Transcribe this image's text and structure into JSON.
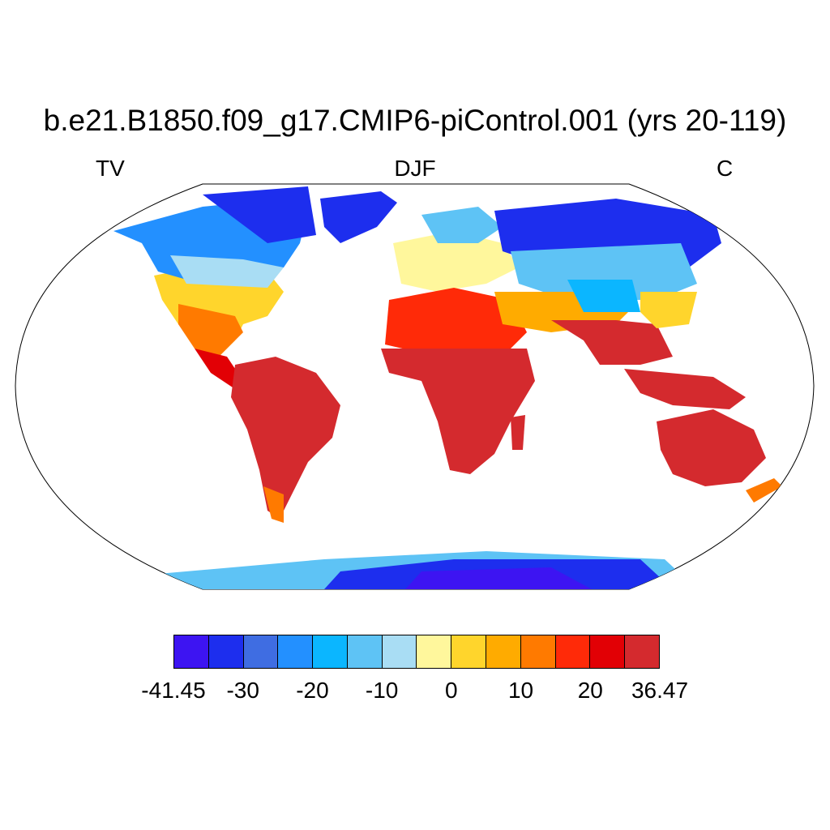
{
  "title": "b.e21.B1850.f09_g17.CMIP6-piControl.001 (yrs 20-119)",
  "subtitle_left": "TV",
  "subtitle_center": "DJF",
  "subtitle_right": "C",
  "colorbar": {
    "colors": [
      "#3d14f2",
      "#1d2eee",
      "#3f6de2",
      "#2390ff",
      "#0bb6ff",
      "#5ec3f5",
      "#a9ddf4",
      "#fff79c",
      "#ffd52c",
      "#ffab00",
      "#ff7a00",
      "#ff2a08",
      "#e20005",
      "#d42a2e"
    ],
    "labels": [
      "-41.45",
      "-30",
      "-20",
      "-10",
      "0",
      "10",
      "20",
      "36.47"
    ],
    "label_box_index": [
      0,
      2,
      4,
      6,
      8,
      10,
      12,
      14
    ]
  },
  "map": {
    "projection": "Robinson",
    "variable_units": "C",
    "season": "DJF"
  }
}
